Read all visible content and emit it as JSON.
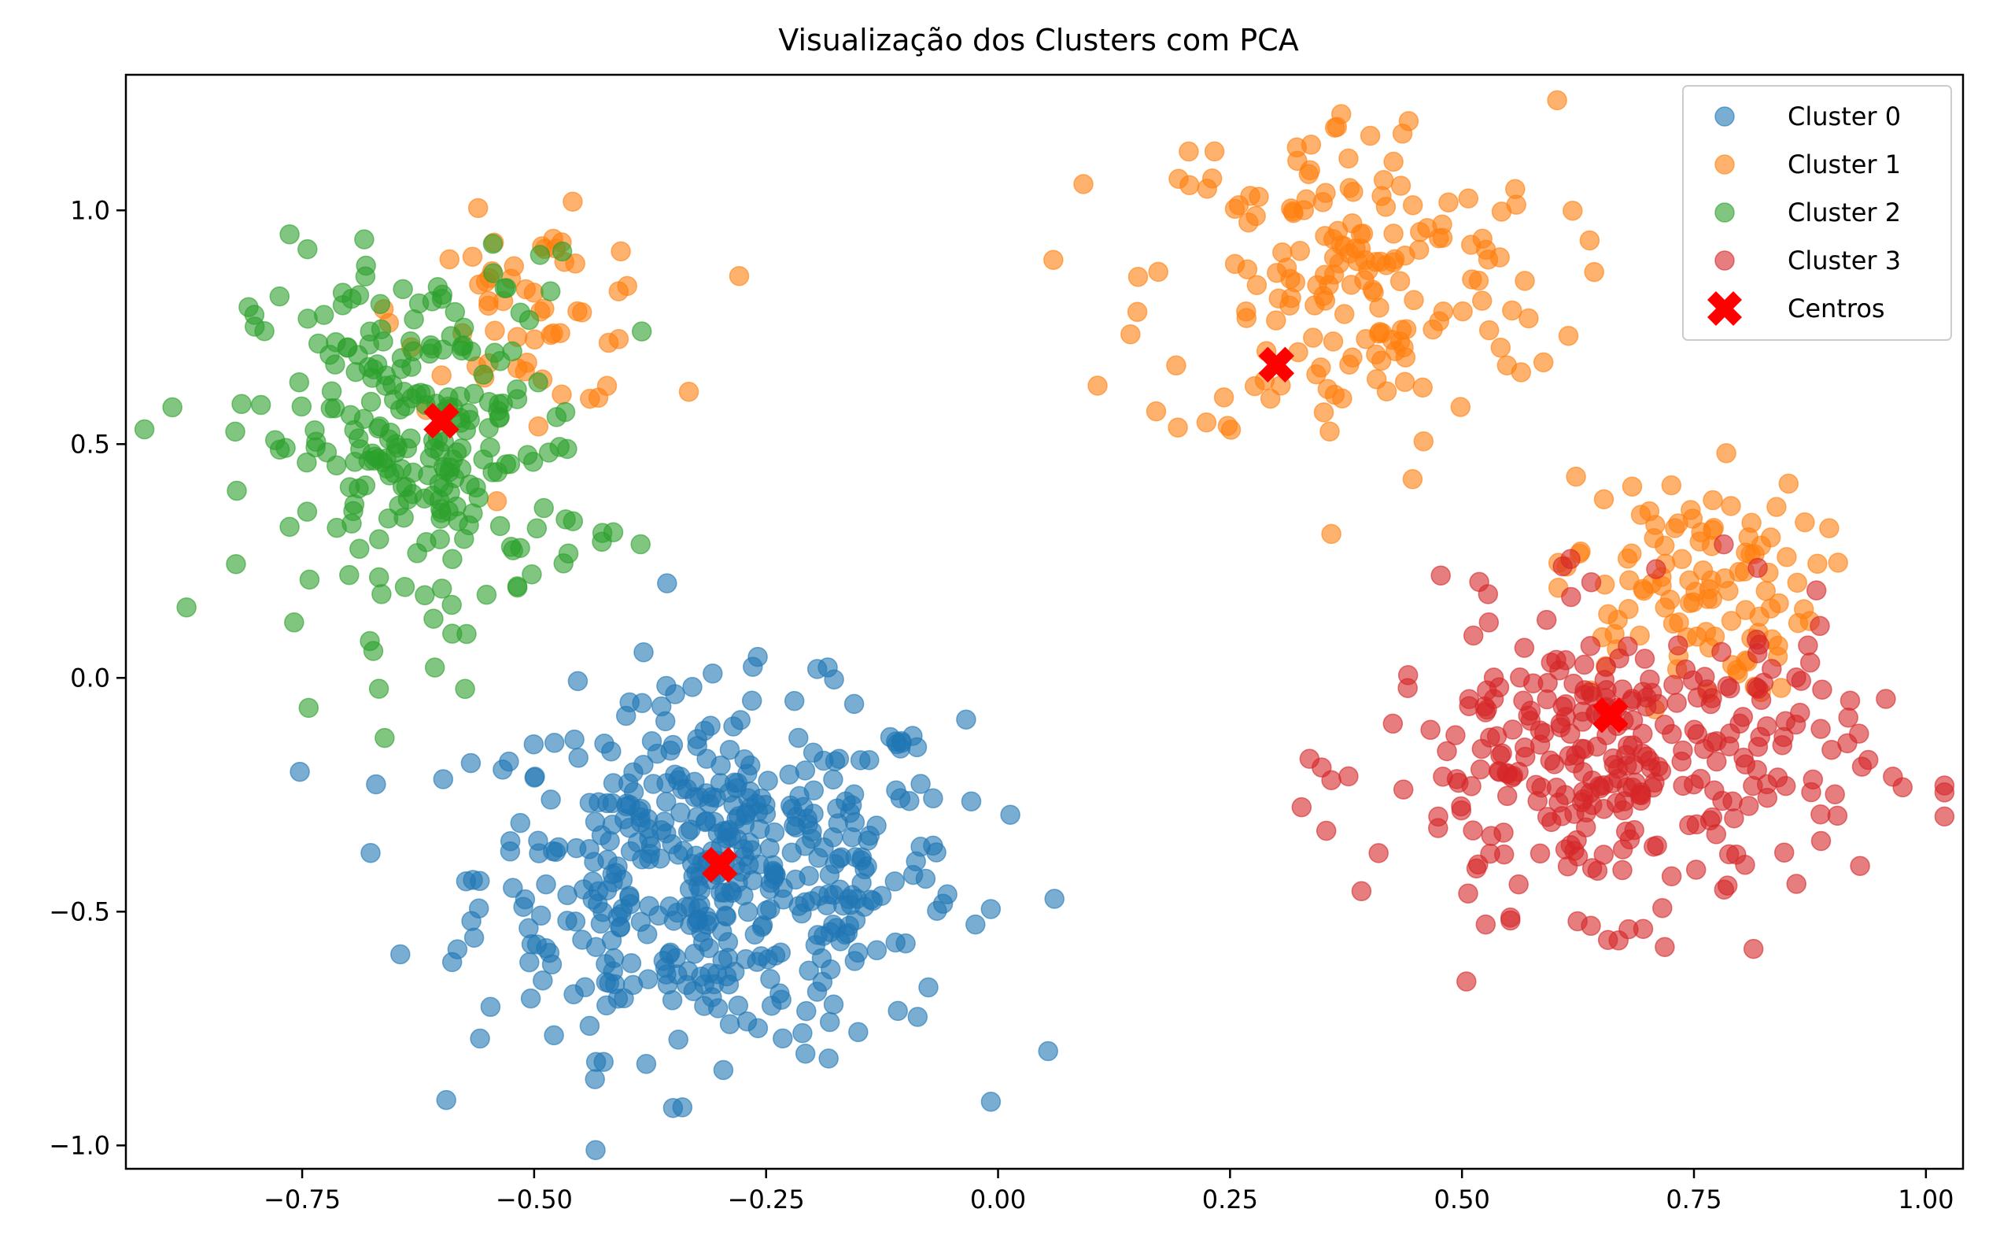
{
  "chart_data": {
    "type": "scatter",
    "title": "Visualização dos Clusters com PCA",
    "xlabel": "",
    "ylabel": "",
    "xlim": [
      -0.94,
      1.04
    ],
    "ylim": [
      -1.05,
      1.29
    ],
    "x_ticks": [
      -0.75,
      -0.5,
      -0.25,
      0.0,
      0.25,
      0.5,
      0.75,
      1.0
    ],
    "x_tick_labels": [
      "−0.75",
      "−0.50",
      "−0.25",
      "0.00",
      "0.25",
      "0.50",
      "0.75",
      "1.00"
    ],
    "y_ticks": [
      -1.0,
      -0.5,
      0.0,
      0.5,
      1.0
    ],
    "y_tick_labels": [
      "−1.0",
      "−0.5",
      "0.0",
      "0.5",
      "1.0"
    ],
    "grid": false,
    "legend_position": "top-right",
    "series": [
      {
        "name": "Cluster 0",
        "color": "#1f77b4",
        "center": [
          -0.3,
          -0.42
        ],
        "spread": [
          0.13,
          0.19
        ],
        "count": 480,
        "x_range": [
          -0.55,
          0.05
        ],
        "y_range": [
          -0.95,
          0.14
        ]
      },
      {
        "name": "Cluster 1",
        "color": "#ff7f0e",
        "components": [
          {
            "center": [
              -0.5,
              0.78
            ],
            "spread": [
              0.07,
              0.1
            ],
            "count": 60
          },
          {
            "center": [
              0.38,
              0.85
            ],
            "spread": [
              0.11,
              0.19
            ],
            "count": 180
          },
          {
            "center": [
              0.74,
              0.2
            ],
            "spread": [
              0.07,
              0.12
            ],
            "count": 110
          }
        ],
        "x_range": [
          0.14,
          0.88
        ],
        "y_range": [
          -0.05,
          1.18
        ]
      },
      {
        "name": "Cluster 2",
        "color": "#2ca02c",
        "center": [
          -0.62,
          0.5
        ],
        "spread": [
          0.09,
          0.2
        ],
        "count": 260,
        "x_range": [
          -0.85,
          -0.4
        ],
        "y_range": [
          -0.07,
          0.95
        ]
      },
      {
        "name": "Cluster 3",
        "color": "#d62728",
        "center": [
          0.67,
          -0.18
        ],
        "spread": [
          0.13,
          0.16
        ],
        "count": 320,
        "x_range": [
          0.39,
          0.94
        ],
        "y_range": [
          -0.9,
          0.41
        ]
      }
    ],
    "centers": {
      "name": "Centros",
      "color": "#ff0000",
      "marker": "X",
      "points": [
        [
          -0.3,
          -0.4
        ],
        [
          0.3,
          0.67
        ],
        [
          -0.6,
          0.55
        ],
        [
          0.66,
          -0.08
        ]
      ]
    }
  }
}
